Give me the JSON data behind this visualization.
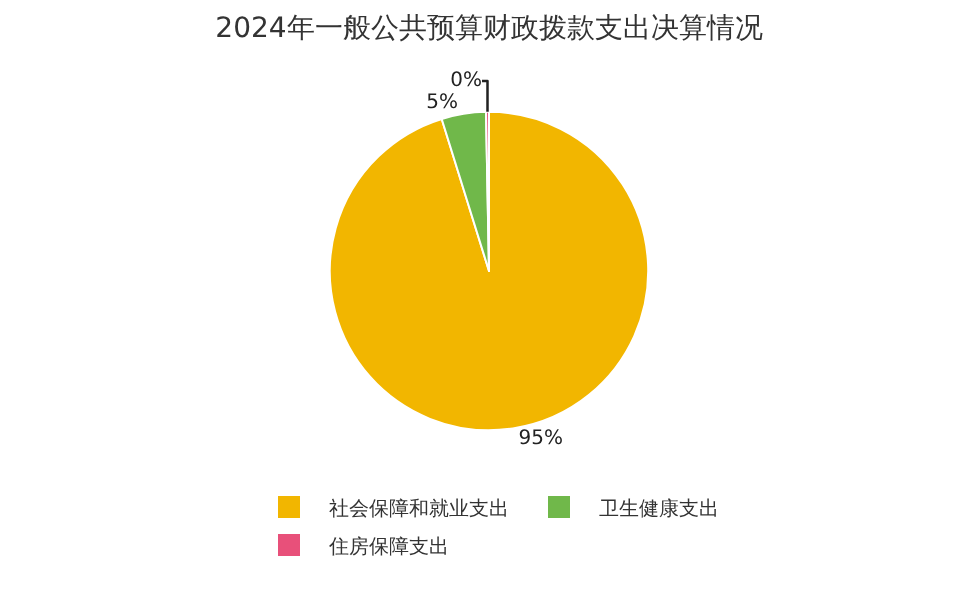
{
  "chart_data": {
    "type": "pie",
    "title": "2024年一般公共预算财政拨款支出决算情况",
    "categories": [
      "社会保障和就业支出",
      "卫生健康支出",
      "住房保障支出"
    ],
    "values": [
      95.2,
      4.5,
      0.3
    ],
    "value_labels": [
      "95%",
      "5%",
      "0%"
    ],
    "colors": [
      "#f2b600",
      "#70b84a",
      "#e8507a"
    ],
    "legend": "bottom"
  }
}
